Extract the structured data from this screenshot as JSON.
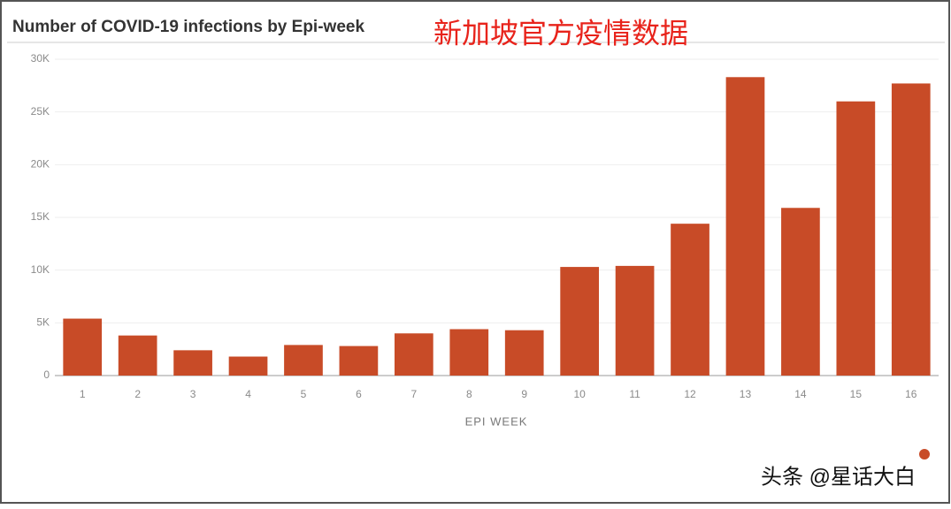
{
  "chart_data": {
    "type": "bar",
    "title": "Number of COVID-19 infections by Epi-week",
    "annotation": "新加坡官方疫情数据",
    "watermark": "头条 @星话大白",
    "x_label": "EPI WEEK",
    "categories": [
      "1",
      "2",
      "3",
      "4",
      "5",
      "6",
      "7",
      "8",
      "9",
      "10",
      "11",
      "12",
      "13",
      "14",
      "15",
      "16"
    ],
    "values": [
      5400,
      3800,
      2400,
      1800,
      2900,
      2800,
      4000,
      4400,
      4300,
      10300,
      10400,
      14400,
      28300,
      15900,
      26000,
      27700
    ],
    "color": "#c84b27",
    "ylim": [
      0,
      30000
    ],
    "yticks": [
      0,
      {
        "value": 5000,
        "label": "5K"
      },
      {
        "value": 10000,
        "label": "10K"
      },
      {
        "value": 15000,
        "label": "15K"
      },
      {
        "value": 20000,
        "label": "20K"
      },
      {
        "value": 25000,
        "label": "25K"
      },
      {
        "value": 30000,
        "label": "30K"
      }
    ],
    "grid": true
  }
}
